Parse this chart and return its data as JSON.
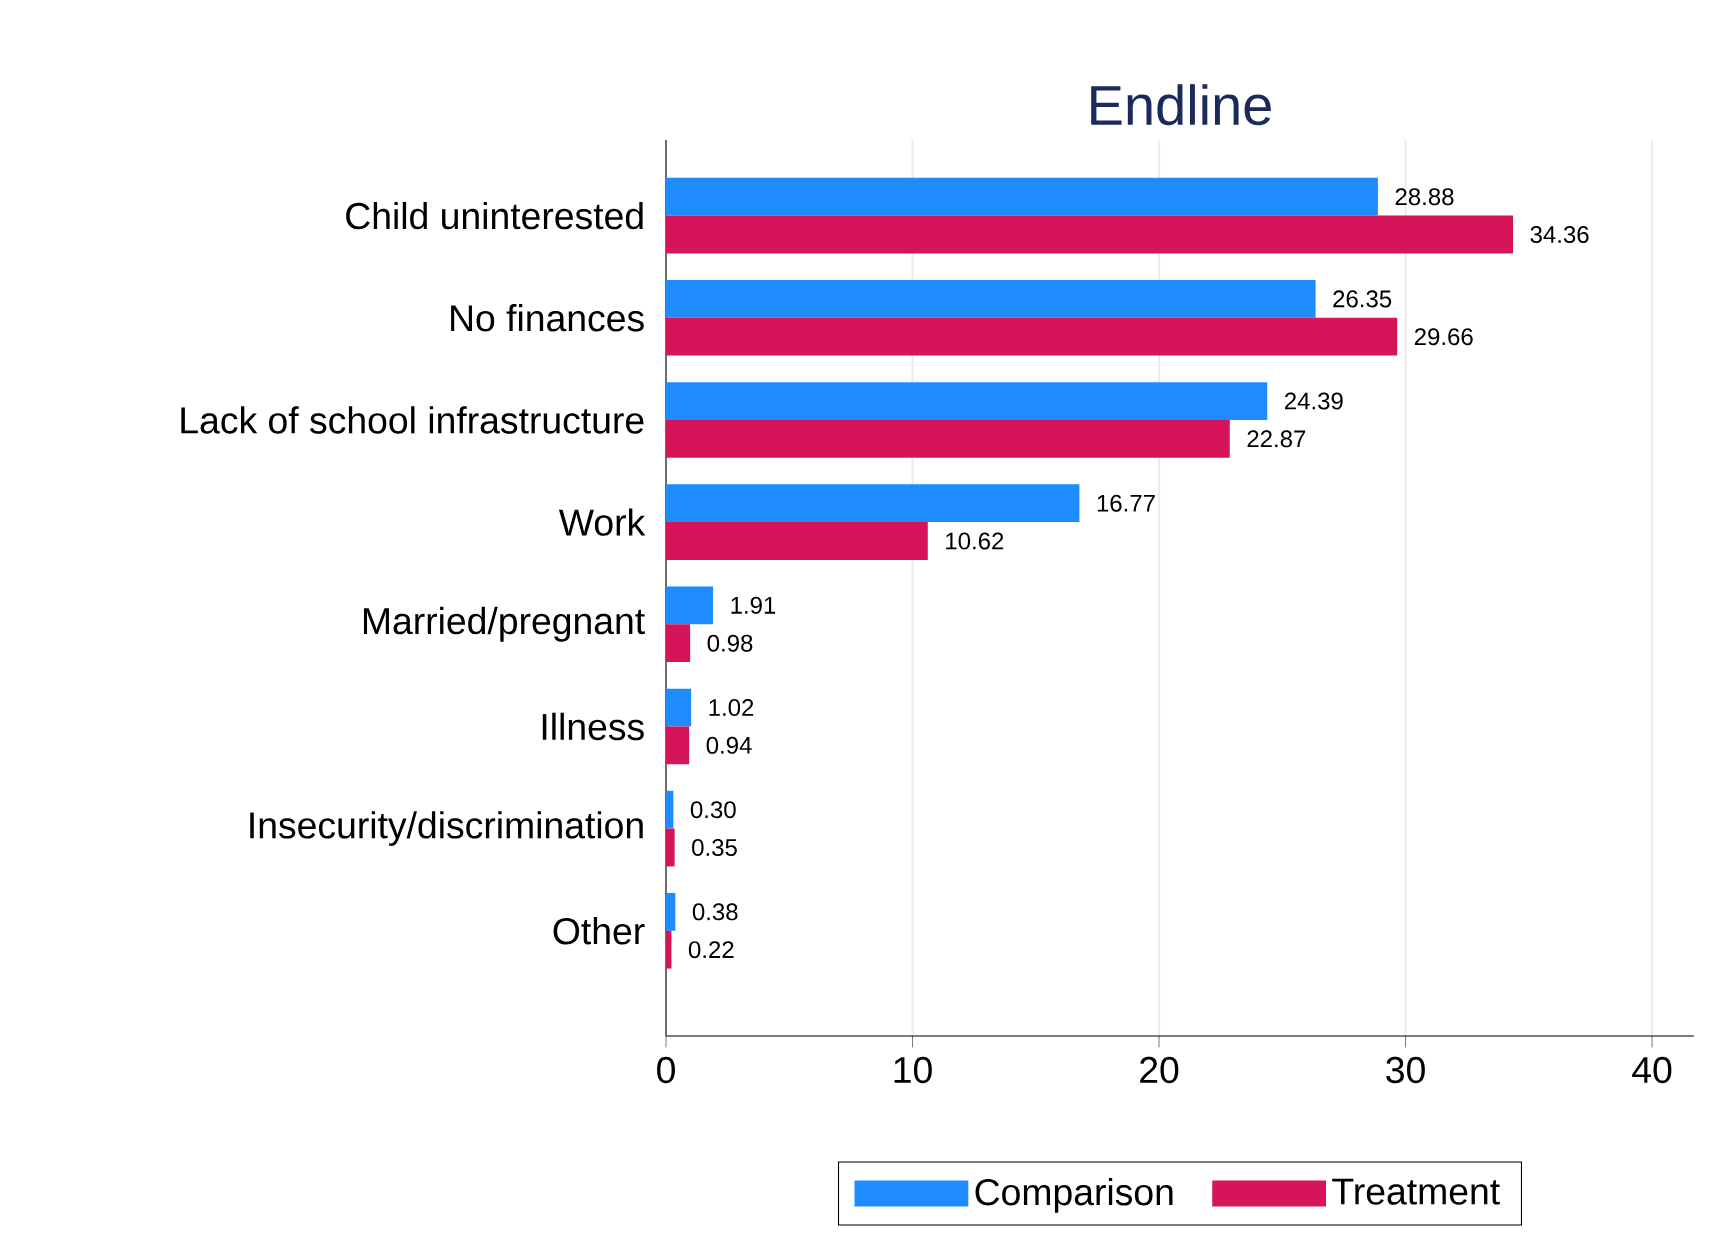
{
  "chart_data": {
    "type": "bar",
    "orientation": "horizontal",
    "title": "Endline",
    "categories": [
      "Child uninterested",
      "No finances",
      "Lack of school infrastructure",
      "Work",
      "Married/pregnant",
      "Illness",
      "Insecurity/discrimination",
      "Other"
    ],
    "series": [
      {
        "name": "Comparison",
        "color": "#1e8cff",
        "values": [
          28.88,
          26.35,
          24.39,
          16.77,
          1.91,
          1.02,
          0.3,
          0.38
        ],
        "value_labels": [
          "28.88",
          "26.35",
          "24.39",
          "16.77",
          "1.91",
          "1.02",
          "0.30",
          "0.38"
        ]
      },
      {
        "name": "Treatment",
        "color": "#d6145a",
        "values": [
          34.36,
          29.66,
          22.87,
          10.62,
          0.98,
          0.94,
          0.35,
          0.22
        ],
        "value_labels": [
          "34.36",
          "29.66",
          "22.87",
          "10.62",
          "0.98",
          "0.94",
          "0.35",
          "0.22"
        ]
      }
    ],
    "xlim": [
      0,
      41.7
    ],
    "xticks": [
      0,
      10,
      20,
      30,
      40
    ],
    "grid": "x",
    "legend": "bottom"
  }
}
